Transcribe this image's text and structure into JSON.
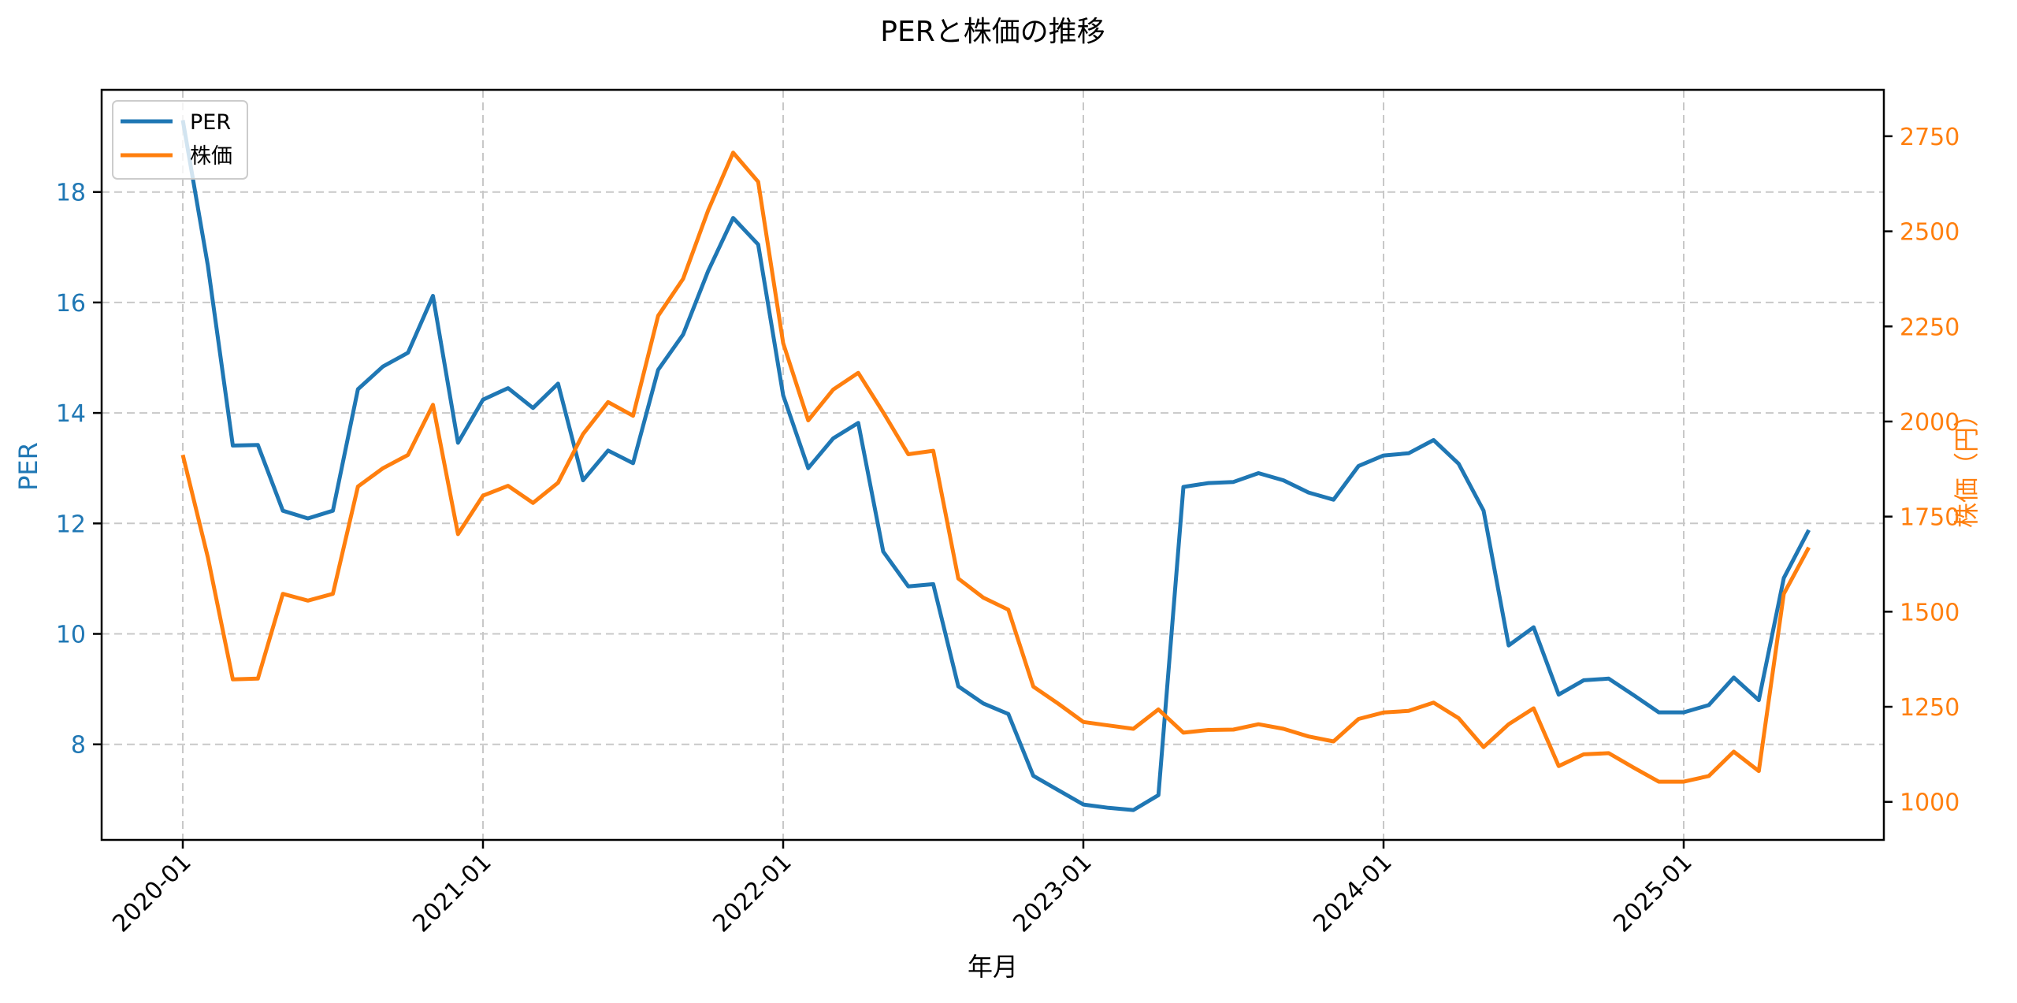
{
  "figure": {
    "title": "PERと株価の推移",
    "xlabel": "年月",
    "ylabel_left": "PER",
    "ylabel_right": "株価（円）",
    "colors": {
      "per": "#1f77b4",
      "price": "#ff7f0e",
      "grid": "#c8c8c8",
      "axis": "#000000"
    },
    "legend": [
      {
        "label": "PER",
        "color": "#1f77b4"
      },
      {
        "label": "株価",
        "color": "#ff7f0e"
      }
    ]
  },
  "chart_data": {
    "type": "line",
    "title": "PERと株価の推移",
    "xlabel": "年月",
    "ylabel": "PER",
    "ylabel_secondary": "株価（円）",
    "legend_position": "upper left",
    "grid": true,
    "x_tick_labels": [
      "2020-01",
      "2021-01",
      "2022-01",
      "2023-01",
      "2024-01",
      "2025-01"
    ],
    "y_ticks_left": [
      8,
      10,
      12,
      14,
      16,
      18
    ],
    "y_ticks_right": [
      1000,
      1250,
      1500,
      1750,
      2000,
      2250,
      2500,
      2750
    ],
    "ylim_left": [
      6.27,
      19.85
    ],
    "ylim_right": [
      900,
      2872
    ],
    "x": [
      "2020-01",
      "2020-02",
      "2020-03",
      "2020-04",
      "2020-05",
      "2020-06",
      "2020-07",
      "2020-08",
      "2020-09",
      "2020-10",
      "2020-11",
      "2020-12",
      "2021-01",
      "2021-02",
      "2021-03",
      "2021-04",
      "2021-05",
      "2021-06",
      "2021-07",
      "2021-08",
      "2021-09",
      "2021-10",
      "2021-11",
      "2021-12",
      "2022-01",
      "2022-02",
      "2022-03",
      "2022-04",
      "2022-05",
      "2022-06",
      "2022-07",
      "2022-08",
      "2022-09",
      "2022-10",
      "2022-11",
      "2022-12",
      "2023-01",
      "2023-02",
      "2023-03",
      "2023-04",
      "2023-05",
      "2023-06",
      "2023-07",
      "2023-08",
      "2023-09",
      "2023-10",
      "2023-11",
      "2023-12",
      "2024-01",
      "2024-02",
      "2024-03",
      "2024-04",
      "2024-05",
      "2024-06",
      "2024-07",
      "2024-08",
      "2024-09",
      "2024-10",
      "2024-11",
      "2024-12",
      "2025-01",
      "2025-02",
      "2025-03",
      "2025-04",
      "2025-05",
      "2025-06"
    ],
    "series": [
      {
        "name": "PER",
        "axis": "left",
        "color": "#1f77b4",
        "values": [
          19.3,
          16.67,
          13.41,
          13.42,
          12.23,
          12.09,
          12.23,
          14.43,
          14.84,
          15.09,
          16.12,
          13.46,
          14.24,
          14.45,
          14.09,
          14.53,
          12.78,
          13.32,
          13.09,
          14.78,
          15.42,
          16.57,
          17.53,
          17.05,
          14.32,
          13.0,
          13.54,
          13.82,
          11.49,
          10.86,
          10.9,
          9.05,
          8.74,
          8.55,
          7.43,
          7.17,
          6.91,
          6.85,
          6.81,
          7.08,
          12.66,
          12.73,
          12.75,
          12.91,
          12.78,
          12.56,
          12.43,
          13.04,
          13.23,
          13.27,
          13.51,
          13.08,
          12.23,
          9.79,
          10.12,
          8.9,
          9.16,
          9.19,
          8.89,
          8.58,
          8.58,
          8.71,
          9.21,
          8.8,
          11.01,
          11.88
        ]
      },
      {
        "name": "株価",
        "axis": "right",
        "color": "#ff7f0e",
        "values": [
          1912,
          1643,
          1322,
          1324,
          1547,
          1529,
          1547,
          1829,
          1877,
          1912,
          2044,
          1704,
          1805,
          1831,
          1786,
          1839,
          1967,
          2051,
          2015,
          2278,
          2375,
          2555,
          2707,
          2630,
          2206,
          2003,
          2084,
          2128,
          2024,
          1914,
          1923,
          1587,
          1537,
          1505,
          1303,
          1258,
          1210,
          1201,
          1192,
          1243,
          1182,
          1189,
          1190,
          1204,
          1192,
          1172,
          1159,
          1218,
          1235,
          1239,
          1261,
          1220,
          1144,
          1204,
          1246,
          1094,
          1125,
          1128,
          1090,
          1053,
          1053,
          1068,
          1132,
          1081,
          1547,
          1669
        ]
      }
    ]
  }
}
